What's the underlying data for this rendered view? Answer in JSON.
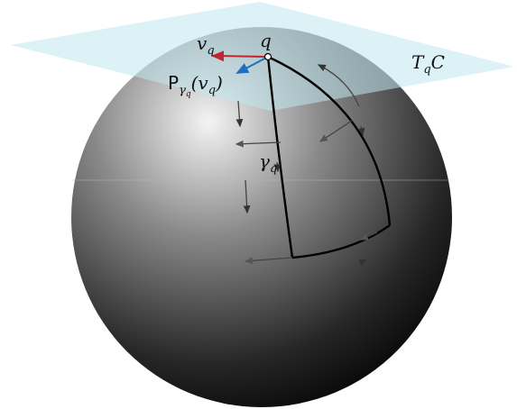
{
  "labels": {
    "v_q": {
      "base": "v",
      "sub": "q"
    },
    "q": "q",
    "tangent_space": {
      "base": "T",
      "sub": "q",
      "after": "C"
    },
    "transport": {
      "base": "P",
      "sub": "γ",
      "subsub": "q",
      "open": "(v",
      "arg_sub": "q",
      "close": ")"
    },
    "gamma_q": {
      "base": "γ",
      "sub": "q"
    }
  }
}
